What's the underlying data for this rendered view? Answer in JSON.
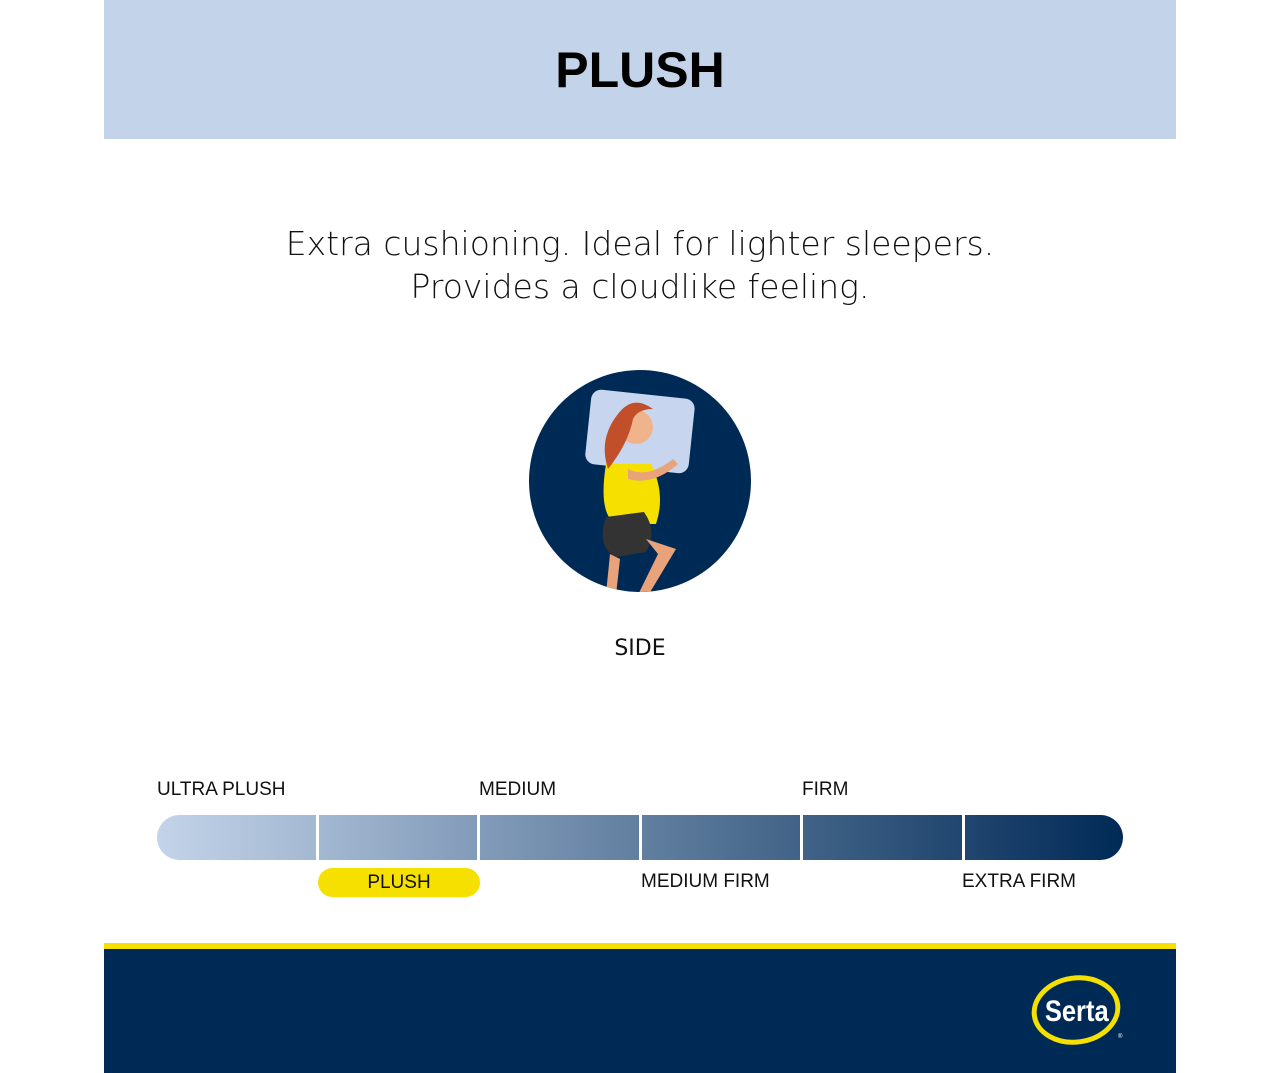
{
  "header": {
    "title": "PLUSH"
  },
  "description": {
    "line1": "Extra cushioning. Ideal for lighter sleepers.",
    "line2": "Provides a cloudlike feeling."
  },
  "sleep_position": {
    "label": "SIDE",
    "icon": "side-sleeper-illustration"
  },
  "firmness_scale": {
    "top_labels": [
      "ULTRA PLUSH",
      "MEDIUM",
      "FIRM"
    ],
    "bottom_labels": [
      "PLUSH",
      "MEDIUM FIRM",
      "EXTRA FIRM"
    ],
    "selected": "PLUSH",
    "selected_level": 2,
    "levels": 6
  },
  "brand": {
    "logo_text": "Serta"
  },
  "colors": {
    "header_bg": "#c3d4ea",
    "navy": "#002a56",
    "yellow": "#f5e000",
    "scale_light": "#c3d4ea",
    "scale_dark": "#002a56"
  }
}
